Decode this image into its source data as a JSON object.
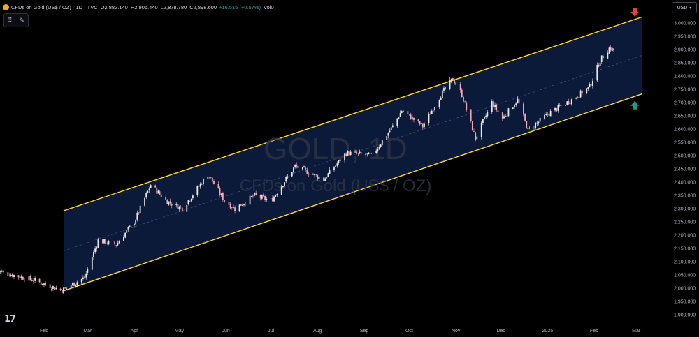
{
  "header": {
    "symbol": "CFDs on Gold (US$ / OZ) · 1D · TVC",
    "open_label": "O",
    "open": "2,882.140",
    "high_label": "H",
    "high": "2,906.440",
    "low_label": "L",
    "low": "2,878.780",
    "close_label": "C",
    "close": "2,898.600",
    "change": "+16.515 (+0.57%)",
    "volume_label": "Vol",
    "volume": "0"
  },
  "toolbar": {
    "tools_icons": [
      "grid-icon",
      "brush-icon"
    ]
  },
  "currency": {
    "selected": "USD"
  },
  "watermark": {
    "symbol": "GOLD, 1D",
    "description": "CFDs on Gold (US$ / OZ)"
  },
  "logo_text": "17",
  "colors": {
    "background": "#000000",
    "channel_fill": "#0c1a3a",
    "channel_line": "#ffd740",
    "midline": "#3d4f88",
    "candle_up": "#e8e8e8",
    "candle_down": "#f2a7b7",
    "arrow_down": "#e04040",
    "arrow_up": "#1a9e80"
  },
  "chart_data": {
    "type": "candlestick",
    "title": "",
    "y_axis": {
      "ticks": [
        "3,000.000",
        "2,950.000",
        "2,900.000",
        "2,850.000",
        "2,800.000",
        "2,750.000",
        "2,700.000",
        "2,650.000",
        "2,600.000",
        "2,550.000",
        "2,500.000",
        "2,450.000",
        "2,400.000",
        "2,350.000",
        "2,300.000",
        "2,250.000",
        "2,200.000",
        "2,150.000",
        "2,100.000",
        "2,050.000",
        "2,000.000",
        "1,950.000",
        "1,900.000"
      ],
      "range": [
        1880,
        3035
      ]
    },
    "x_axis": {
      "labels": [
        "Feb",
        "Mar",
        "Apr",
        "May",
        "Jun",
        "Jul",
        "Aug",
        "Sep",
        "Oct",
        "Nov",
        "Dec",
        "2025",
        "Feb",
        "Mar"
      ]
    },
    "close_path": [
      [
        "2024-01-01",
        2065
      ],
      [
        "2024-01-25",
        2030
      ],
      [
        "2024-02-13",
        1992
      ],
      [
        "2024-02-28",
        2040
      ],
      [
        "2024-03-08",
        2180
      ],
      [
        "2024-03-20",
        2165
      ],
      [
        "2024-04-01",
        2250
      ],
      [
        "2024-04-12",
        2390
      ],
      [
        "2024-04-22",
        2330
      ],
      [
        "2024-05-03",
        2300
      ],
      [
        "2024-05-20",
        2430
      ],
      [
        "2024-05-31",
        2330
      ],
      [
        "2024-06-07",
        2300
      ],
      [
        "2024-06-20",
        2350
      ],
      [
        "2024-07-01",
        2330
      ],
      [
        "2024-07-17",
        2460
      ],
      [
        "2024-08-05",
        2410
      ],
      [
        "2024-08-20",
        2510
      ],
      [
        "2024-09-06",
        2500
      ],
      [
        "2024-09-20",
        2610
      ],
      [
        "2024-09-26",
        2670
      ],
      [
        "2024-10-10",
        2610
      ],
      [
        "2024-10-22",
        2730
      ],
      [
        "2024-10-30",
        2790
      ],
      [
        "2024-11-05",
        2730
      ],
      [
        "2024-11-14",
        2565
      ],
      [
        "2024-11-25",
        2700
      ],
      [
        "2024-12-02",
        2640
      ],
      [
        "2024-12-12",
        2710
      ],
      [
        "2024-12-19",
        2595
      ],
      [
        "2025-01-02",
        2660
      ],
      [
        "2025-01-17",
        2710
      ],
      [
        "2025-01-29",
        2760
      ],
      [
        "2025-02-05",
        2860
      ],
      [
        "2025-02-11",
        2905
      ],
      [
        "2025-02-14",
        2898
      ]
    ],
    "channel": {
      "start_date": "2024-02-14",
      "end_date": "2025-03-05",
      "upper": [
        2292,
        3023
      ],
      "lower": [
        1990,
        2733
      ],
      "mid": [
        2141,
        2878
      ]
    },
    "annotations": [
      {
        "type": "arrow-down",
        "color": "red",
        "date": "2025-02-28",
        "price": 3040
      },
      {
        "type": "arrow-up",
        "color": "green",
        "date": "2025-02-28",
        "price": 2690
      }
    ]
  }
}
